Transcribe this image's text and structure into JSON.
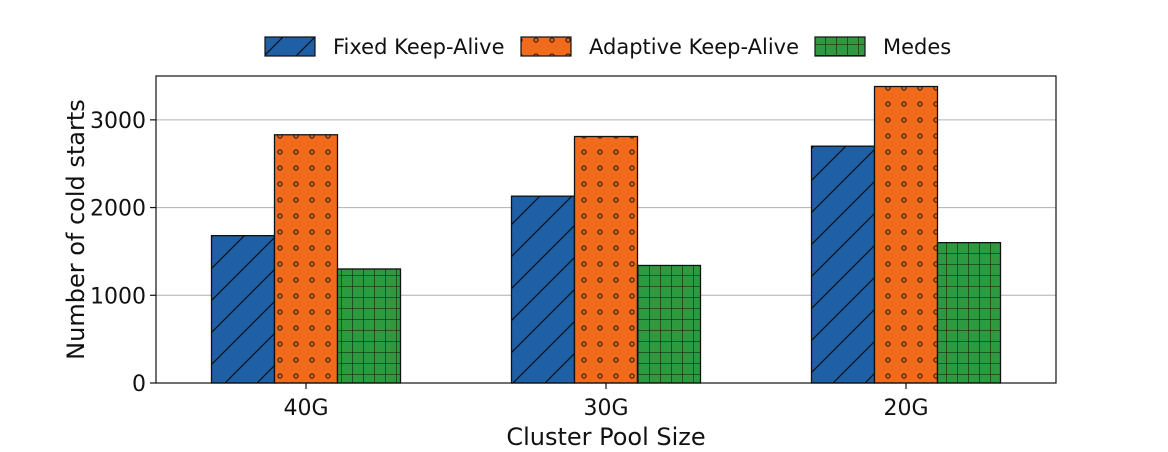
{
  "chart_data": {
    "type": "bar",
    "title": "",
    "xlabel": "Cluster Pool Size",
    "ylabel": "Number of cold starts",
    "categories": [
      "40G",
      "30G",
      "20G"
    ],
    "series": [
      {
        "name": "Fixed Keep-Alive",
        "values": [
          1680,
          2130,
          2700
        ],
        "color": "#1f5fa6",
        "hatch": "diagonal"
      },
      {
        "name": "Adaptive Keep-Alive",
        "values": [
          2830,
          2810,
          3380
        ],
        "color": "#f26a1b",
        "hatch": "dots"
      },
      {
        "name": "Medes",
        "values": [
          1300,
          1340,
          1600
        ],
        "color": "#2e9a3f",
        "hatch": "grid"
      }
    ],
    "ylim": [
      0,
      3500
    ],
    "yticks": [
      0,
      1000,
      2000,
      3000
    ],
    "ytick_labels": [
      "0",
      "1000",
      "2000",
      "3000"
    ],
    "grid": "horizontal",
    "legend_position": "top-center"
  }
}
